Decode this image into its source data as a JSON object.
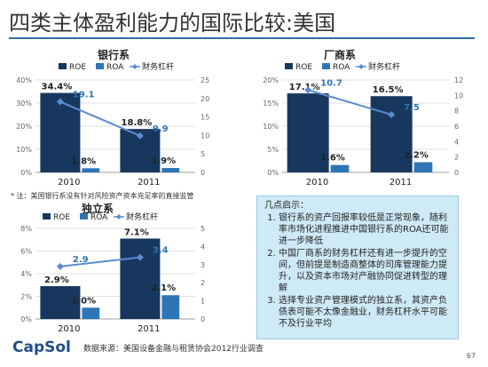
{
  "slide": {
    "title": "四类主体盈利能力的国际比较:美国",
    "note": "* 注：美国银行系没有针对风险资产资本充足率的直接监管",
    "callout_heading": "几点启示：",
    "callout_items": [
      "银行系的资产回报率较低是正常现象，随利率市场化进程推进中国银行系的ROA还可能进一步降低",
      "中国厂商系的财务杠杆还有进一步提升的空间，但前提是制造商整体的司库管理能力提升，以及资本市场对产融协同促进转型的理解",
      "选择专业资产管理模式的独立系，其资产负债表可能不太像金融业，财务杠杆水平可能不及行业平均"
    ],
    "logo": "CapSol",
    "source": "数据来源：美国设备金融与租赁协会2012行业调查",
    "page_number": "67"
  },
  "colors": {
    "roe": "#17375e",
    "roa": "#2e75b6",
    "leverage": "#5b8bd0",
    "title_rule": "#2e6ea6",
    "callout_bg": "#cfeaf7"
  },
  "chart_data": [
    {
      "type": "bar",
      "title": "银行系",
      "categories": [
        "2010",
        "2011"
      ],
      "series": [
        {
          "name": "ROE",
          "axis": "left",
          "values": [
            34.4,
            18.8
          ],
          "labels": [
            "34.4%",
            "18.8%"
          ]
        },
        {
          "name": "ROA",
          "axis": "left",
          "values": [
            1.8,
            1.9
          ],
          "labels": [
            "1.8%",
            "1.9%"
          ]
        },
        {
          "name": "财务杠杆",
          "axis": "right",
          "kind": "line",
          "values": [
            19.1,
            9.9
          ],
          "labels": [
            "19.1",
            "9.9"
          ]
        }
      ],
      "ylim": [
        0,
        40
      ],
      "yticks": [
        "0%",
        "10%",
        "20%",
        "30%",
        "40%"
      ],
      "y2lim": [
        0,
        25
      ],
      "y2ticks": [
        "0",
        "5",
        "10",
        "15",
        "20",
        "25"
      ],
      "legend": "top"
    },
    {
      "type": "bar",
      "title": "厂商系",
      "categories": [
        "2010",
        "2011"
      ],
      "series": [
        {
          "name": "ROE",
          "axis": "left",
          "values": [
            17.1,
            16.5
          ],
          "labels": [
            "17.1%",
            "16.5%"
          ]
        },
        {
          "name": "ROA",
          "axis": "left",
          "values": [
            1.6,
            2.2
          ],
          "labels": [
            "1.6%",
            "2.2%"
          ]
        },
        {
          "name": "财务杠杆",
          "axis": "right",
          "kind": "line",
          "values": [
            10.7,
            7.5
          ],
          "labels": [
            "10.7",
            "7.5"
          ]
        }
      ],
      "ylim": [
        0,
        20
      ],
      "yticks": [
        "0%",
        "5%",
        "10%",
        "15%",
        "20%"
      ],
      "y2lim": [
        0,
        12
      ],
      "y2ticks": [
        "0",
        "2",
        "4",
        "6",
        "8",
        "10",
        "12"
      ],
      "legend": "top"
    },
    {
      "type": "bar",
      "title": "独立系",
      "categories": [
        "2010",
        "2011"
      ],
      "series": [
        {
          "name": "ROE",
          "axis": "left",
          "values": [
            2.9,
            7.1
          ],
          "labels": [
            "2.9%",
            "7.1%"
          ]
        },
        {
          "name": "ROA",
          "axis": "left",
          "values": [
            1.0,
            2.1
          ],
          "labels": [
            "1.0%",
            "2.1%"
          ]
        },
        {
          "name": "财务杠杆",
          "axis": "right",
          "kind": "line",
          "values": [
            2.9,
            3.4
          ],
          "labels": [
            "2.9",
            "3.4"
          ]
        }
      ],
      "ylim": [
        0,
        8
      ],
      "yticks": [
        "0%",
        "2%",
        "4%",
        "6%",
        "8%"
      ],
      "y2lim": [
        0,
        5
      ],
      "y2ticks": [
        "0",
        "1",
        "2",
        "3",
        "4",
        "5"
      ],
      "legend": "top"
    }
  ]
}
